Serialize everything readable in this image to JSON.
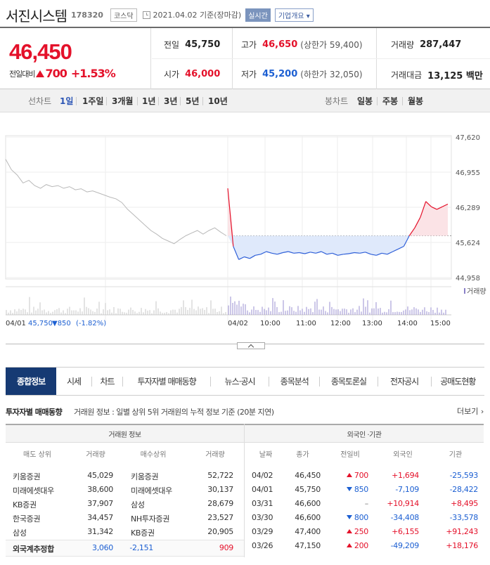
{
  "stock": {
    "name": "서진시스템",
    "code": "178320",
    "market": "코스닥",
    "base_date": "2021.04.02 기준(장마감)",
    "realtime": "실시간",
    "company_overview": "기업개요 ▾"
  },
  "price": {
    "current": "46,450",
    "change_label": "전일대비",
    "change_amount": "700",
    "change_rate": "+1.53%",
    "prev_label": "전일",
    "prev": "45,750",
    "open_label": "시가",
    "open": "46,000",
    "high_label": "고가",
    "high": "46,650",
    "upper_limit": "(상한가 59,400)",
    "low_label": "저가",
    "low": "45,200",
    "lower_limit": "(하한가 32,050)",
    "volume_label": "거래량",
    "volume": "287,447",
    "amount_label": "거래대금",
    "amount": "13,125 백만"
  },
  "chart_tabs": {
    "line_label": "선차트",
    "line": [
      "1일",
      "1주일",
      "3개월",
      "1년",
      "3년",
      "5년",
      "10년"
    ],
    "selected_line": "1일",
    "candle_label": "봉차트",
    "candle": [
      "일봉",
      "주봉",
      "월봉"
    ]
  },
  "chart_data": {
    "type": "line",
    "y_ticks": [
      "47,620",
      "46,955",
      "46,289",
      "45,624",
      "44,958"
    ],
    "ylim": [
      44958,
      47620
    ],
    "x_ticks": [
      "04/01",
      "04/02",
      "10:00",
      "11:00",
      "12:00",
      "13:00",
      "14:00",
      "15:00"
    ],
    "reference_price": 45750,
    "prev_day_info": {
      "date": "04/01",
      "close": "45,750",
      "change": "▼850",
      "rate": "(-1.82%)"
    },
    "volume_legend": "거래량",
    "prev_day_series": [
      47200,
      47000,
      46900,
      46750,
      46800,
      46700,
      46650,
      46720,
      46680,
      46700,
      46650,
      46680,
      46620,
      46640,
      46580,
      46600,
      46560,
      46520,
      46480,
      46450,
      46380,
      46250,
      46150,
      46050,
      45950,
      45850,
      45780,
      45700,
      45650,
      45600,
      45680,
      45750,
      45800,
      45850,
      45780,
      45850,
      45900,
      45820,
      45750
    ],
    "today_series": [
      46650,
      45550,
      45300,
      45350,
      45320,
      45380,
      45400,
      45450,
      45420,
      45400,
      45430,
      45450,
      45420,
      45430,
      45410,
      45440,
      45420,
      45450,
      45400,
      45420,
      45380,
      45400,
      45410,
      45430,
      45420,
      45440,
      45400,
      45380,
      45420,
      45400,
      45450,
      45500,
      45550,
      45750,
      45900,
      46100,
      46400,
      46300,
      46250,
      46300,
      46350
    ]
  },
  "main_tabs": [
    {
      "label": "종합정보",
      "selected": true
    },
    {
      "label": "시세"
    },
    {
      "label": "차트"
    },
    {
      "label": "투자자별 매매동향"
    },
    {
      "label": "뉴스·공시"
    },
    {
      "label": "종목분석"
    },
    {
      "label": "종목토론실"
    },
    {
      "label": "전자공시"
    },
    {
      "label": "공매도현황"
    }
  ],
  "section": {
    "title": "투자자별 매매동향",
    "desc": "거래원 정보 : 일별 상위 5위 거래원의 누적 정보 기준 (20분 지연)",
    "more": "더보기 ›"
  },
  "broker_table": {
    "header": "거래원 정보",
    "cols": [
      "매도 상위",
      "거래량",
      "매수상위",
      "거래량"
    ],
    "rows": [
      [
        "키움증권",
        "45,029",
        "키움증권",
        "52,722"
      ],
      [
        "미래에셋대우",
        "38,600",
        "미래에셋대우",
        "30,137"
      ],
      [
        "KB증권",
        "37,907",
        "삼성",
        "28,679"
      ],
      [
        "한국증권",
        "34,457",
        "NH투자증권",
        "23,527"
      ],
      [
        "삼성",
        "31,342",
        "KB증권",
        "20,905"
      ]
    ],
    "foreign_label": "외국계추정합",
    "foreign": [
      "3,060",
      "-2,151",
      "909"
    ]
  },
  "investor_table": {
    "header": "외국인 ·기관",
    "cols": [
      "날짜",
      "종가",
      "전일비",
      "외국인",
      "기관"
    ],
    "rows": [
      [
        "04/02",
        "46,450",
        "700",
        "+1,694",
        "-25,593"
      ],
      [
        "04/01",
        "45,750",
        "850",
        "-7,109",
        "-28,422"
      ],
      [
        "03/31",
        "46,600",
        "–",
        "+10,914",
        "+8,495"
      ],
      [
        "03/30",
        "46,600",
        "800",
        "-34,408",
        "-33,578"
      ],
      [
        "03/29",
        "47,400",
        "250",
        "+6,155",
        "+91,243"
      ],
      [
        "03/26",
        "47,150",
        "200",
        "-49,209",
        "+18,176"
      ]
    ],
    "directions": [
      "up",
      "down",
      "none",
      "down",
      "up",
      "up"
    ]
  }
}
